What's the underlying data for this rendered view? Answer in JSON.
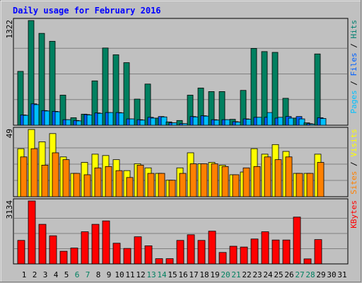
{
  "chart_data": {
    "type": "bar",
    "title": "Daily usage for February 2016",
    "categories": [
      "1",
      "2",
      "3",
      "4",
      "5",
      "6",
      "7",
      "8",
      "9",
      "10",
      "11",
      "12",
      "13",
      "14",
      "15",
      "16",
      "17",
      "18",
      "19",
      "20",
      "21",
      "22",
      "23",
      "24",
      "25",
      "26",
      "27",
      "28",
      "29",
      "30",
      "31"
    ],
    "weekend_days": [
      6,
      7,
      13,
      14,
      20,
      21,
      27,
      28
    ],
    "panels": [
      {
        "ymax_label": "1322",
        "ymax": 1322,
        "right_label_parts": [
          {
            "text": "Pages",
            "color": "#00c0ff"
          },
          {
            "text": " / ",
            "color": "#000000"
          },
          {
            "text": "Files",
            "color": "#0060ff"
          },
          {
            "text": " / ",
            "color": "#000000"
          },
          {
            "text": "Hits",
            "color": "#008070"
          }
        ],
        "series": [
          {
            "name": "Hits",
            "color": "#008060",
            "values": [
              680,
              1322,
              1160,
              1060,
              380,
              95,
              140,
              560,
              975,
              890,
              790,
              330,
              520,
              90,
              42,
              60,
              380,
              470,
              425,
              425,
              75,
              440,
              970,
              930,
              920,
              340,
              90,
              30,
              900,
              0,
              0
            ]
          },
          {
            "name": "Files",
            "color": "#0060ff",
            "values": [
              130,
              270,
              185,
              175,
              70,
              60,
              135,
              155,
              160,
              160,
              80,
              70,
              100,
              110,
              30,
              20,
              110,
              120,
              70,
              70,
              45,
              80,
              100,
              100,
              90,
              110,
              110,
              20,
              95,
              0,
              0
            ]
          },
          {
            "name": "Pages",
            "color": "#00c0ff",
            "values": [
              125,
              260,
              180,
              170,
              70,
              55,
              130,
              150,
              160,
              155,
              80,
              65,
              90,
              105,
              30,
              20,
              105,
              115,
              65,
              70,
              40,
              75,
              100,
              160,
              100,
              90,
              80,
              15,
              85,
              0,
              0
            ]
          }
        ]
      },
      {
        "ymax_label": "49",
        "ymax": 49,
        "right_label_parts": [
          {
            "text": "Sites",
            "color": "#ff8000"
          },
          {
            "text": " / ",
            "color": "#000000"
          },
          {
            "text": "Visits",
            "color": "#ffff00"
          }
        ],
        "series": [
          {
            "name": "Visits",
            "color": "#ffff00",
            "values": [
              35,
              49,
              40,
              46,
              29,
              17,
              25,
              31,
              30,
              27,
              19,
              24,
              21,
              17,
              12,
              21,
              32,
              24,
              25,
              23,
              16,
              18,
              35,
              31,
              38,
              33,
              17,
              17,
              31,
              0,
              0
            ]
          },
          {
            "name": "Sites",
            "color": "#ff8000",
            "values": [
              29,
              35,
              23,
              32,
              27,
              17,
              16,
              21,
              22,
              19,
              14,
              23,
              17,
              17,
              12,
              17,
              24,
              24,
              24,
              22,
              16,
              21,
              22,
              29,
              27,
              29,
              17,
              17,
              25,
              0,
              0
            ]
          }
        ]
      },
      {
        "ymax_label": "3134",
        "ymax": 3134,
        "right_label_parts": [
          {
            "text": "KBytes",
            "color": "#ff0000"
          }
        ],
        "series": [
          {
            "name": "KBytes",
            "color": "#ff0000",
            "values": [
              1170,
              3134,
              1970,
              1400,
              630,
              790,
              1600,
              1970,
              2140,
              1030,
              770,
              1350,
              900,
              260,
              260,
              1170,
              1450,
              1170,
              1630,
              570,
              880,
              840,
              1240,
              1600,
              1190,
              1190,
              2330,
              250,
              1210,
              0,
              0
            ]
          }
        ]
      }
    ]
  }
}
